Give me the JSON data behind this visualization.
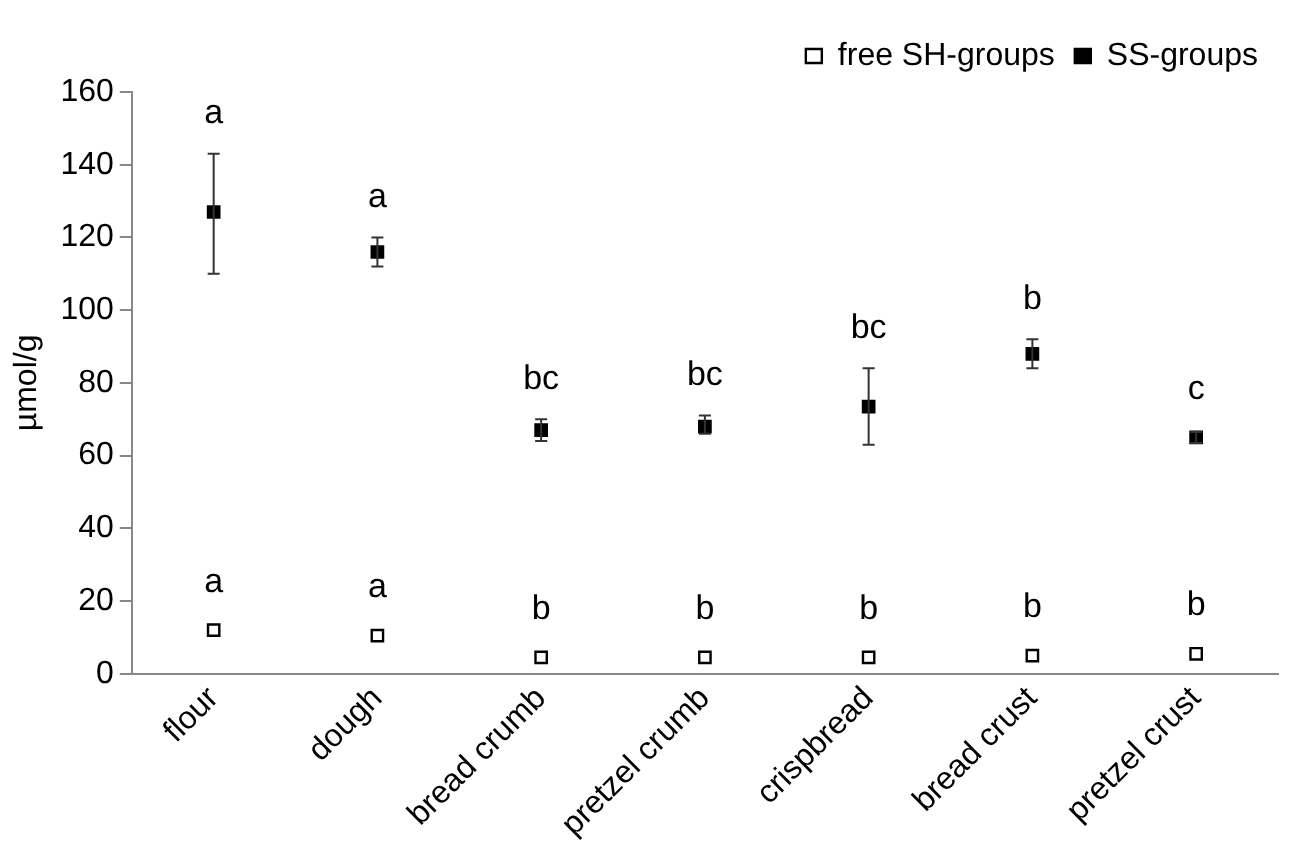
{
  "chart_data": {
    "type": "scatter",
    "ylabel": "µmol/g",
    "categories": [
      "flour",
      "dough",
      "bread crumb",
      "pretzel crumb",
      "crispbread",
      "bread crust",
      "pretzel crust"
    ],
    "series": [
      {
        "name": "free SH-groups",
        "color": "#ffffff",
        "values": [
          12,
          10.5,
          4.5,
          4.5,
          4.5,
          5,
          5.5
        ]
      },
      {
        "name": "SS-groups",
        "color": "#000000",
        "values": [
          127,
          116,
          67,
          68,
          73.5,
          88,
          65
        ],
        "errors": [
          [
            110,
            143
          ],
          [
            112,
            120
          ],
          [
            64,
            70
          ],
          [
            66,
            71
          ],
          [
            63,
            84
          ],
          [
            84,
            92
          ],
          [
            63.5,
            66.5
          ]
        ]
      }
    ],
    "ylim": [
      0,
      160
    ],
    "yticks": [
      0,
      20,
      40,
      60,
      80,
      100,
      120,
      140,
      160
    ],
    "grid": false,
    "legend": "top right",
    "marker": "square",
    "annotations": [
      "a",
      "a",
      "b",
      "b",
      "b",
      "b",
      "b",
      "a",
      "a",
      "bc",
      "bc",
      "bc",
      "b",
      "c"
    ]
  }
}
